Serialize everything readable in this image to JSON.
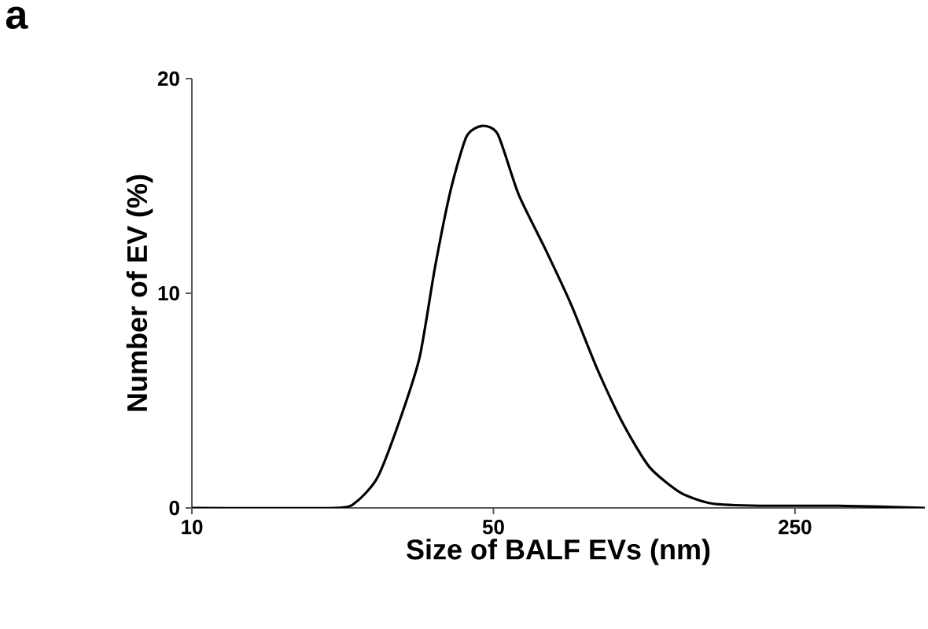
{
  "chart_data": {
    "type": "line",
    "title": "a",
    "xlabel": "Size of BALF EVs (nm)",
    "ylabel": "Number of EV (%)",
    "log": "x",
    "xlim": [
      10,
      500
    ],
    "xticks": [
      10,
      50,
      250
    ],
    "ylim": [
      0,
      20
    ],
    "yticks": [
      0,
      10,
      20
    ],
    "grid": false,
    "marker": "none",
    "line_style": "solid",
    "series": [
      {
        "color": "#000000",
        "x": [
          10,
          21.5,
          24.1,
          26.9,
          30.1,
          33.7,
          36.6,
          39.8,
          43.3,
          47.1,
          51.2,
          57.2,
          65.8,
          75.6,
          86.9,
          100,
          115,
          136,
          161,
          207,
          314,
          500
        ],
        "values": [
          0,
          0,
          0.3,
          1.4,
          3.9,
          7.0,
          11.2,
          14.8,
          17.3,
          17.8,
          17.4,
          14.6,
          12.1,
          9.5,
          6.5,
          3.9,
          1.9,
          0.7,
          0.2,
          0.1,
          0.1,
          0
        ]
      }
    ]
  }
}
